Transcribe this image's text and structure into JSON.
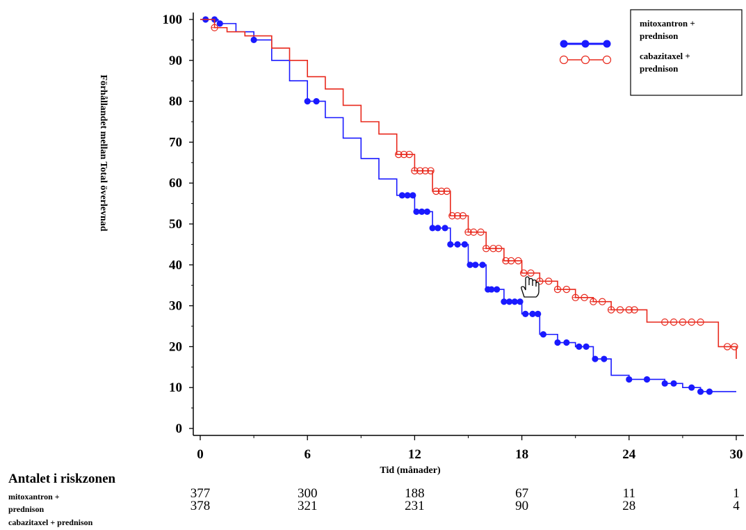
{
  "chart_data": {
    "type": "line",
    "subtype": "kaplan-meier",
    "xlabel": "Tid (månader)",
    "ylabel": "Förhållandet mellan Total överlevnad",
    "xlim": [
      0,
      30
    ],
    "ylim": [
      0,
      100
    ],
    "xticks": [
      0,
      6,
      12,
      18,
      24,
      30
    ],
    "yticks": [
      0,
      10,
      20,
      30,
      40,
      50,
      60,
      70,
      80,
      90,
      100
    ],
    "legend_position": "top-right",
    "series": [
      {
        "name": "mitoxantron + prednison",
        "legend_lines": [
          "mitoxantron +",
          "prednison"
        ],
        "color": "#1a1aff",
        "marker": "filled-circle",
        "x": [
          0,
          0.5,
          1,
          2,
          3,
          4,
          5,
          6,
          7,
          8,
          9,
          10,
          11,
          12,
          13,
          14,
          15,
          16,
          17,
          18,
          19,
          20,
          21,
          22,
          23,
          24,
          25,
          26,
          27,
          28,
          29,
          30
        ],
        "y": [
          100,
          100,
          99,
          97,
          95,
          90,
          85,
          80,
          76,
          71,
          66,
          61,
          57,
          53,
          49,
          45,
          40,
          34,
          31,
          28,
          23,
          21,
          20,
          17,
          13,
          12,
          12,
          11,
          10,
          9,
          9,
          9
        ],
        "censored_x": [
          0.3,
          0.8,
          1.1,
          3,
          6,
          6.5,
          11.3,
          11.6,
          11.9,
          12.1,
          12.4,
          12.7,
          13,
          13.3,
          13.7,
          14,
          14.4,
          14.8,
          15.1,
          15.4,
          15.8,
          16.1,
          16.3,
          16.6,
          17,
          17.3,
          17.6,
          17.9,
          18.2,
          18.6,
          18.9,
          19.2,
          20,
          20.5,
          21.2,
          21.6,
          22.1,
          22.6,
          24,
          25,
          26,
          26.5,
          27.5,
          28,
          28.5
        ]
      },
      {
        "name": "cabazitaxel + prednison",
        "legend_lines": [
          "cabazitaxel +",
          "prednison"
        ],
        "color": "#e8281c",
        "marker": "open-circle",
        "x": [
          0,
          0.8,
          1.5,
          2.5,
          3,
          4,
          5,
          6,
          7,
          8,
          9,
          10,
          11,
          12,
          13,
          14,
          15,
          16,
          17,
          18,
          19,
          20,
          21,
          22,
          23,
          24,
          25,
          26,
          27,
          28,
          29,
          30
        ],
        "y": [
          100,
          98,
          97,
          96,
          96,
          93,
          90,
          86,
          83,
          79,
          75,
          72,
          67,
          63,
          58,
          52,
          48,
          44,
          41,
          38,
          36,
          34,
          32,
          31,
          29,
          29,
          26,
          26,
          26,
          26,
          20,
          17
        ],
        "censored_x": [
          0.8,
          11.1,
          11.4,
          11.7,
          12,
          12.3,
          12.6,
          12.9,
          13.2,
          13.5,
          13.8,
          14.1,
          14.4,
          14.7,
          15,
          15.3,
          15.7,
          16,
          16.4,
          16.7,
          17.1,
          17.4,
          17.8,
          18.1,
          18.5,
          19,
          19.5,
          20,
          20.5,
          21,
          21.5,
          22,
          22.5,
          23,
          23.5,
          24,
          24.3,
          26,
          26.5,
          27,
          27.5,
          28,
          29.5,
          29.9
        ]
      }
    ]
  },
  "risk_table": {
    "title": "Antalet i riskzonen",
    "x": [
      0,
      6,
      12,
      18,
      24,
      30
    ],
    "rows": [
      {
        "label_lines": [
          "mitoxantron +",
          "prednison"
        ],
        "values": [
          "377",
          "300",
          "188",
          "67",
          "11",
          "1"
        ]
      },
      {
        "label_lines": [
          "cabazitaxel + prednison"
        ],
        "values": [
          "378",
          "321",
          "231",
          "90",
          "28",
          "4"
        ]
      }
    ]
  }
}
